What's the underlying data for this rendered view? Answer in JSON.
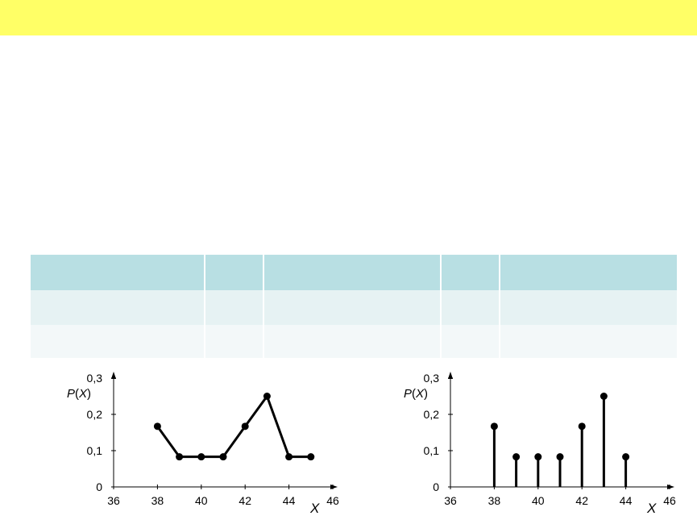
{
  "chart_data": [
    {
      "type": "line",
      "ylabel_var": "P",
      "ylabel_arg": "X",
      "xlabel": "X",
      "x_ticks": [
        "36",
        "38",
        "40",
        "42",
        "44",
        "46"
      ],
      "y_ticks": [
        "0",
        "0,1",
        "0,2",
        "0,3"
      ],
      "xlim": [
        36,
        46
      ],
      "ylim": [
        0,
        0.3
      ],
      "grid": false,
      "series": [
        {
          "x": [
            38,
            39,
            40,
            41,
            42,
            43,
            44,
            45
          ],
          "y": [
            0.167,
            0.083,
            0.083,
            0.083,
            0.167,
            0.25,
            0.083,
            0.083
          ]
        }
      ]
    },
    {
      "type": "bar",
      "style": "stem",
      "ylabel_var": "P",
      "ylabel_arg": "X",
      "xlabel": "X",
      "x_ticks": [
        "36",
        "38",
        "40",
        "42",
        "44",
        "46"
      ],
      "y_ticks": [
        "0",
        "0,1",
        "0,2",
        "0,3"
      ],
      "xlim": [
        36,
        46
      ],
      "ylim": [
        0,
        0.3
      ],
      "grid": false,
      "series": [
        {
          "x": [
            38,
            39,
            40,
            41,
            42,
            43,
            44
          ],
          "y": [
            0.167,
            0.083,
            0.083,
            0.083,
            0.167,
            0.25,
            0.083
          ]
        }
      ]
    }
  ],
  "colors": {
    "title_bar": "#ffff66",
    "table_header": "#b8dfe3",
    "table_row_1": "#e6f2f3",
    "table_row_2": "#f3f8f9",
    "ink": "#000000"
  }
}
